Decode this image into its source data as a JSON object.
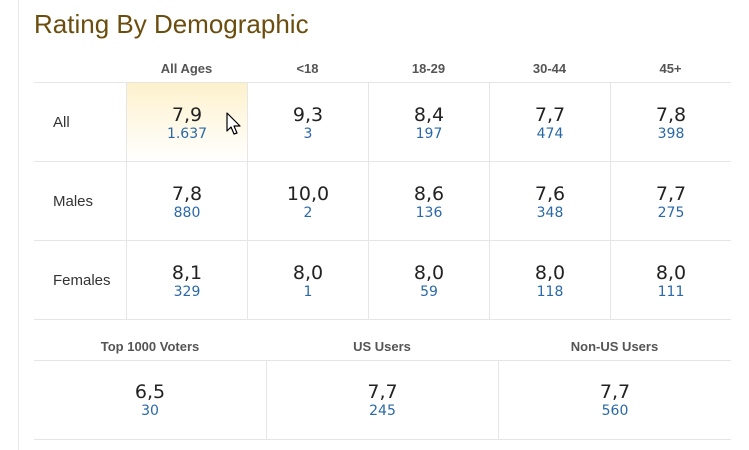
{
  "title": "Rating By Demographic",
  "age_columns": [
    "All Ages",
    "<18",
    "18-29",
    "30-44",
    "45+"
  ],
  "rows": [
    {
      "label": "All",
      "cells": [
        {
          "rating": "7,9",
          "votes": "1.637"
        },
        {
          "rating": "9,3",
          "votes": "3"
        },
        {
          "rating": "8,4",
          "votes": "197"
        },
        {
          "rating": "7,7",
          "votes": "474"
        },
        {
          "rating": "7,8",
          "votes": "398"
        }
      ]
    },
    {
      "label": "Males",
      "cells": [
        {
          "rating": "7,8",
          "votes": "880"
        },
        {
          "rating": "10,0",
          "votes": "2"
        },
        {
          "rating": "8,6",
          "votes": "136"
        },
        {
          "rating": "7,6",
          "votes": "348"
        },
        {
          "rating": "7,7",
          "votes": "275"
        }
      ]
    },
    {
      "label": "Females",
      "cells": [
        {
          "rating": "8,1",
          "votes": "329"
        },
        {
          "rating": "8,0",
          "votes": "1"
        },
        {
          "rating": "8,0",
          "votes": "59"
        },
        {
          "rating": "8,0",
          "votes": "118"
        },
        {
          "rating": "8,0",
          "votes": "111"
        }
      ]
    }
  ],
  "bottom": {
    "columns": [
      "Top 1000 Voters",
      "US Users",
      "Non-US Users"
    ],
    "cells": [
      {
        "rating": "6,5",
        "votes": "30"
      },
      {
        "rating": "7,7",
        "votes": "245"
      },
      {
        "rating": "7,7",
        "votes": "560"
      }
    ]
  }
}
